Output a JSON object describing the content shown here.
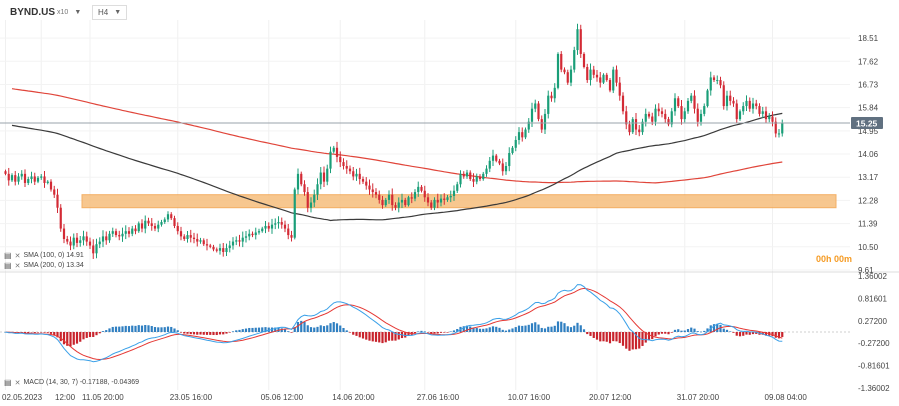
{
  "toolbar": {
    "symbol": "BYND.US",
    "symbol_suffix": "x10",
    "timeframe": "H4",
    "symbol_caret": "▼",
    "timeframe_caret": "▼"
  },
  "legend": {
    "sma100": "SMA (100, 0) 14.91",
    "sma200": "SMA (200, 0) 13.34",
    "macd": "MACD (14, 30, 7) -0.17188, -0.04369"
  },
  "countdown": "00h 00m",
  "colors": {
    "bull": "#1a9e78",
    "bear": "#d32a35",
    "sma100": "#3a3a3a",
    "sma200": "#e0453a",
    "zone_fill": "#f6be7c",
    "zone_stroke": "#f2a24a",
    "price_tag": "#607080",
    "macd_line": "#3aa0e8",
    "signal_line": "#e53935",
    "hist_pos": "#2f7fc1",
    "hist_neg": "#c8232c",
    "countdown": "#f59b24"
  },
  "chart_data": [
    {
      "type": "candlestick",
      "title": "BYND.US H4",
      "y_ticks": [
        18.51,
        17.62,
        16.73,
        15.84,
        14.95,
        14.06,
        13.17,
        12.28,
        11.39,
        10.5,
        9.61
      ],
      "ylim": [
        9.61,
        19.05
      ],
      "current_price": 15.25,
      "x_labels": [
        "02.05.2023",
        "12:00",
        "11.05 20:00",
        "23.05 16:00",
        "05.06 12:00",
        "14.06 20:00",
        "27.06 16:00",
        "10.07 16:00",
        "20.07 12:00",
        "31.07 20:00",
        "09.08 04:00"
      ],
      "x_label_pos": [
        0,
        11,
        26,
        53,
        81,
        103,
        129,
        157,
        182,
        209,
        236
      ],
      "closes": [
        13.3,
        13.05,
        13.25,
        13.0,
        13.2,
        13.3,
        12.95,
        13.1,
        13.2,
        13.0,
        13.15,
        13.2,
        12.95,
        13.0,
        12.7,
        12.5,
        12.0,
        11.2,
        10.8,
        10.7,
        10.55,
        10.85,
        10.65,
        10.75,
        10.9,
        10.7,
        10.55,
        10.25,
        10.6,
        10.7,
        10.9,
        10.75,
        11.0,
        11.1,
        10.95,
        10.9,
        11.0,
        11.1,
        11.0,
        11.2,
        11.1,
        11.4,
        11.2,
        11.5,
        11.4,
        11.3,
        11.2,
        11.35,
        11.45,
        11.55,
        11.75,
        11.6,
        11.3,
        11.1,
        10.9,
        10.8,
        10.95,
        10.85,
        10.8,
        10.7,
        10.75,
        10.6,
        10.55,
        10.5,
        10.4,
        10.35,
        10.45,
        10.3,
        10.45,
        10.55,
        10.7,
        10.75,
        10.7,
        10.85,
        10.9,
        11.0,
        10.95,
        11.05,
        11.1,
        11.2,
        11.3,
        11.2,
        11.35,
        11.4,
        11.45,
        11.35,
        11.2,
        10.95,
        10.85,
        12.7,
        13.3,
        12.9,
        12.6,
        12.0,
        12.2,
        12.5,
        12.9,
        13.35,
        13.0,
        13.5,
        14.15,
        14.3,
        13.95,
        13.75,
        13.6,
        13.5,
        13.4,
        13.2,
        13.3,
        13.1,
        13.0,
        12.85,
        12.7,
        12.6,
        12.5,
        12.3,
        12.1,
        12.3,
        12.5,
        12.1,
        12.0,
        12.2,
        12.3,
        12.1,
        12.4,
        12.35,
        12.6,
        12.8,
        12.65,
        12.4,
        12.2,
        12.0,
        12.3,
        12.2,
        12.35,
        12.3,
        12.4,
        12.45,
        12.65,
        12.9,
        13.3,
        13.2,
        13.35,
        13.1,
        13.0,
        13.2,
        13.1,
        13.3,
        13.5,
        13.8,
        14.0,
        13.8,
        13.7,
        13.4,
        13.6,
        14.1,
        14.3,
        14.6,
        14.9,
        14.7,
        15.0,
        15.3,
        15.8,
        16.0,
        15.4,
        15.0,
        15.6,
        16.3,
        16.2,
        16.6,
        17.9,
        17.3,
        17.2,
        16.8,
        17.3,
        18.05,
        18.85,
        17.9,
        17.4,
        16.9,
        17.3,
        17.1,
        17.0,
        16.8,
        17.1,
        16.9,
        16.5,
        17.3,
        16.8,
        16.3,
        15.7,
        15.2,
        14.9,
        15.4,
        15.0,
        14.9,
        15.3,
        15.6,
        15.5,
        15.3,
        15.8,
        15.7,
        15.6,
        15.4,
        15.2,
        15.7,
        16.2,
        15.9,
        15.4,
        15.7,
        16.1,
        16.3,
        15.8,
        15.3,
        15.6,
        15.9,
        16.5,
        17.0,
        16.9,
        16.9,
        16.7,
        15.9,
        16.3,
        16.1,
        16.0,
        15.4,
        15.7,
        15.9,
        16.1,
        15.8,
        16.0,
        15.9,
        15.6,
        15.7,
        15.4,
        15.5,
        15.3,
        14.85,
        14.85,
        15.25
      ],
      "series": [
        {
          "name": "SMA (100, 0)",
          "last": 14.91
        },
        {
          "name": "SMA (200, 0)",
          "last": 13.34
        }
      ],
      "support_zone": {
        "low": 12.0,
        "high": 12.5
      },
      "countdown": "00h 00m"
    },
    {
      "type": "macd",
      "title": "MACD (14, 30, 7)",
      "params": [
        14,
        30,
        7
      ],
      "values": {
        "macd": -0.17188,
        "signal": -0.04369
      },
      "y_ticks": [
        1.36002,
        0.81601,
        0.272,
        -0.272,
        -0.81601,
        -1.36002
      ],
      "ylim": [
        -1.36002,
        1.36002
      ]
    }
  ]
}
